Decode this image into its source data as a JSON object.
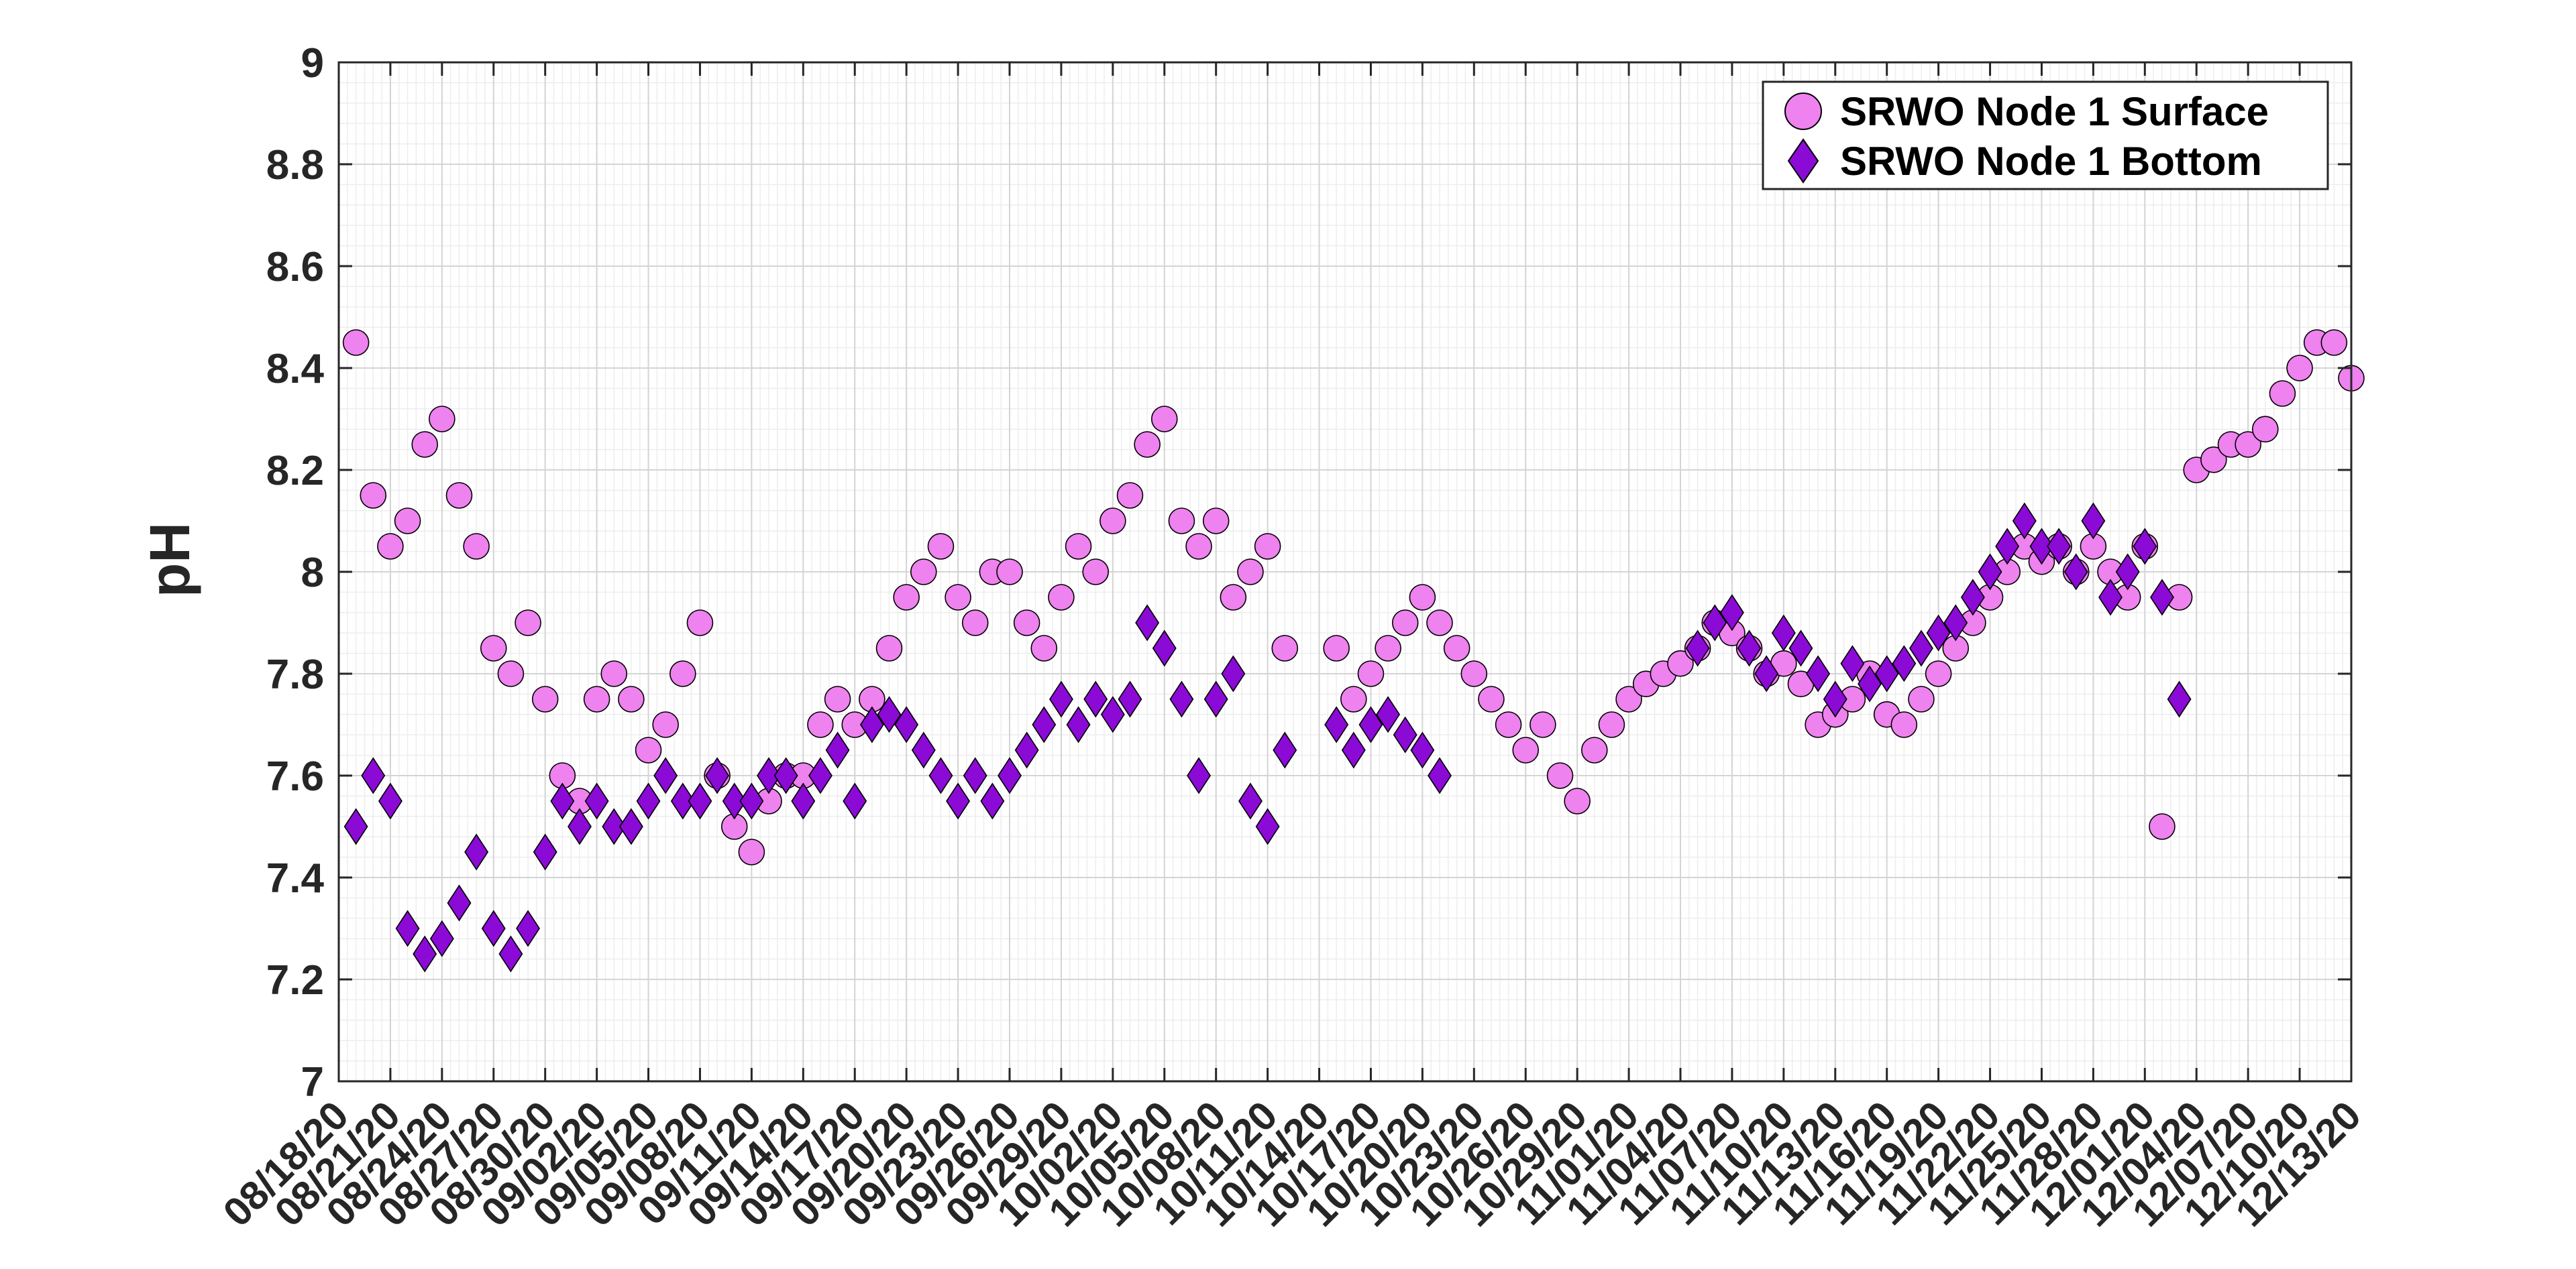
{
  "chart_data": {
    "type": "scatter",
    "title": "",
    "xlabel": "",
    "ylabel": "pH",
    "ylim": [
      7,
      9
    ],
    "yticks": [
      7,
      7.2,
      7.4,
      7.6,
      7.8,
      8,
      8.2,
      8.4,
      8.6,
      8.8,
      9
    ],
    "ytick_labels": [
      "7",
      "7.2",
      "7.4",
      "7.6",
      "7.8",
      "8",
      "8.2",
      "8.4",
      "8.6",
      "8.8",
      "9"
    ],
    "xlim": [
      "2020-08-18",
      "2020-12-13"
    ],
    "xticks": [
      "2020-08-18",
      "2020-08-21",
      "2020-08-24",
      "2020-08-27",
      "2020-08-30",
      "2020-09-02",
      "2020-09-05",
      "2020-09-08",
      "2020-09-11",
      "2020-09-14",
      "2020-09-17",
      "2020-09-20",
      "2020-09-23",
      "2020-09-26",
      "2020-09-29",
      "2020-10-02",
      "2020-10-05",
      "2020-10-08",
      "2020-10-11",
      "2020-10-14",
      "2020-10-17",
      "2020-10-20",
      "2020-10-23",
      "2020-10-26",
      "2020-10-29",
      "2020-11-01",
      "2020-11-04",
      "2020-11-07",
      "2020-11-10",
      "2020-11-13",
      "2020-11-16",
      "2020-11-19",
      "2020-11-22",
      "2020-11-25",
      "2020-11-28",
      "2020-12-01",
      "2020-12-04",
      "2020-12-07",
      "2020-12-10",
      "2020-12-13"
    ],
    "xtick_labels": [
      "08/18/20",
      "08/21/20",
      "08/24/20",
      "08/27/20",
      "08/30/20",
      "09/02/20",
      "09/05/20",
      "09/08/20",
      "09/11/20",
      "09/14/20",
      "09/17/20",
      "09/20/20",
      "09/23/20",
      "09/26/20",
      "09/29/20",
      "10/02/20",
      "10/05/20",
      "10/08/20",
      "10/11/20",
      "10/14/20",
      "10/17/20",
      "10/20/20",
      "10/23/20",
      "10/26/20",
      "10/29/20",
      "11/01/20",
      "11/04/20",
      "11/07/20",
      "11/10/20",
      "11/13/20",
      "11/16/20",
      "11/19/20",
      "11/22/20",
      "11/25/20",
      "11/28/20",
      "12/01/20",
      "12/04/20",
      "12/07/20",
      "12/10/20",
      "12/13/20"
    ],
    "grid": true,
    "minor_grid": true,
    "legend_position": "top-right",
    "series": [
      {
        "name": "SRWO Node 1 Surface",
        "marker": "circle",
        "color": "#EE82EE",
        "edge_color": "#000000",
        "x": [
          "2020-08-19",
          "2020-08-20",
          "2020-08-21",
          "2020-08-22",
          "2020-08-23",
          "2020-08-24",
          "2020-08-25",
          "2020-08-26",
          "2020-08-27",
          "2020-08-28",
          "2020-08-29",
          "2020-08-30",
          "2020-08-31",
          "2020-09-01",
          "2020-09-02",
          "2020-09-03",
          "2020-09-04",
          "2020-09-05",
          "2020-09-06",
          "2020-09-07",
          "2020-09-08",
          "2020-09-09",
          "2020-09-10",
          "2020-09-11",
          "2020-09-12",
          "2020-09-13",
          "2020-09-14",
          "2020-09-15",
          "2020-09-16",
          "2020-09-17",
          "2020-09-18",
          "2020-09-19",
          "2020-09-20",
          "2020-09-21",
          "2020-09-22",
          "2020-09-23",
          "2020-09-24",
          "2020-09-25",
          "2020-09-26",
          "2020-09-27",
          "2020-09-28",
          "2020-09-29",
          "2020-09-30",
          "2020-10-01",
          "2020-10-02",
          "2020-10-03",
          "2020-10-04",
          "2020-10-05",
          "2020-10-06",
          "2020-10-07",
          "2020-10-08",
          "2020-10-09",
          "2020-10-10",
          "2020-10-11",
          "2020-10-12",
          "2020-10-15",
          "2020-10-16",
          "2020-10-17",
          "2020-10-18",
          "2020-10-19",
          "2020-10-20",
          "2020-10-21",
          "2020-10-22",
          "2020-10-23",
          "2020-10-24",
          "2020-10-25",
          "2020-10-26",
          "2020-10-27",
          "2020-10-28",
          "2020-10-29",
          "2020-10-30",
          "2020-10-31",
          "2020-11-01",
          "2020-11-02",
          "2020-11-03",
          "2020-11-04",
          "2020-11-05",
          "2020-11-06",
          "2020-11-07",
          "2020-11-08",
          "2020-11-09",
          "2020-11-10",
          "2020-11-11",
          "2020-11-12",
          "2020-11-13",
          "2020-11-14",
          "2020-11-15",
          "2020-11-16",
          "2020-11-17",
          "2020-11-18",
          "2020-11-19",
          "2020-11-20",
          "2020-11-21",
          "2020-11-22",
          "2020-11-23",
          "2020-11-24",
          "2020-11-25",
          "2020-11-26",
          "2020-11-27",
          "2020-11-28",
          "2020-11-29",
          "2020-11-30",
          "2020-12-01",
          "2020-12-02",
          "2020-12-03",
          "2020-12-04",
          "2020-12-05",
          "2020-12-06",
          "2020-12-07",
          "2020-12-08",
          "2020-12-09",
          "2020-12-10",
          "2020-12-11",
          "2020-12-12",
          "2020-12-13"
        ],
        "values": [
          8.45,
          8.15,
          8.05,
          8.1,
          8.25,
          8.3,
          8.15,
          8.05,
          7.85,
          7.8,
          7.9,
          7.75,
          7.6,
          7.55,
          7.75,
          7.8,
          7.75,
          7.65,
          7.7,
          7.8,
          7.9,
          7.6,
          7.5,
          7.45,
          7.55,
          7.6,
          7.6,
          7.7,
          7.75,
          7.7,
          7.75,
          7.85,
          7.95,
          8.0,
          8.05,
          7.95,
          7.9,
          8.0,
          8.0,
          7.9,
          7.85,
          7.95,
          8.05,
          8.0,
          8.1,
          8.15,
          8.25,
          8.3,
          8.1,
          8.05,
          8.1,
          7.95,
          8.0,
          8.05,
          7.85,
          7.85,
          7.75,
          7.8,
          7.85,
          7.9,
          7.95,
          7.9,
          7.85,
          7.8,
          7.75,
          7.7,
          7.65,
          7.7,
          7.6,
          7.55,
          7.65,
          7.7,
          7.75,
          7.78,
          7.8,
          7.82,
          7.85,
          7.9,
          7.88,
          7.85,
          7.8,
          7.82,
          7.78,
          7.7,
          7.72,
          7.75,
          7.8,
          7.72,
          7.7,
          7.75,
          7.8,
          7.85,
          7.9,
          7.95,
          8.0,
          8.05,
          8.02,
          8.05,
          8.0,
          8.05,
          8.0,
          7.95,
          8.05,
          7.5,
          7.95,
          8.2,
          8.22,
          8.25,
          8.25,
          8.28,
          8.35,
          8.4,
          8.45,
          8.45,
          8.38
        ]
      },
      {
        "name": "SRWO Node 1 Bottom",
        "marker": "diamond",
        "color": "#8B0AD6",
        "edge_color": "#000000",
        "x": [
          "2020-08-19",
          "2020-08-20",
          "2020-08-21",
          "2020-08-22",
          "2020-08-23",
          "2020-08-24",
          "2020-08-25",
          "2020-08-26",
          "2020-08-27",
          "2020-08-28",
          "2020-08-29",
          "2020-08-30",
          "2020-08-31",
          "2020-09-01",
          "2020-09-02",
          "2020-09-03",
          "2020-09-04",
          "2020-09-05",
          "2020-09-06",
          "2020-09-07",
          "2020-09-08",
          "2020-09-09",
          "2020-09-10",
          "2020-09-11",
          "2020-09-12",
          "2020-09-13",
          "2020-09-14",
          "2020-09-15",
          "2020-09-16",
          "2020-09-17",
          "2020-09-18",
          "2020-09-19",
          "2020-09-20",
          "2020-09-21",
          "2020-09-22",
          "2020-09-23",
          "2020-09-24",
          "2020-09-25",
          "2020-09-26",
          "2020-09-27",
          "2020-09-28",
          "2020-09-29",
          "2020-09-30",
          "2020-10-01",
          "2020-10-02",
          "2020-10-03",
          "2020-10-04",
          "2020-10-05",
          "2020-10-06",
          "2020-10-07",
          "2020-10-08",
          "2020-10-09",
          "2020-10-10",
          "2020-10-11",
          "2020-10-12",
          "2020-10-15",
          "2020-10-16",
          "2020-10-17",
          "2020-10-18",
          "2020-10-19",
          "2020-10-20",
          "2020-10-21",
          "2020-11-05",
          "2020-11-06",
          "2020-11-07",
          "2020-11-08",
          "2020-11-09",
          "2020-11-10",
          "2020-11-11",
          "2020-11-12",
          "2020-11-13",
          "2020-11-14",
          "2020-11-15",
          "2020-11-16",
          "2020-11-17",
          "2020-11-18",
          "2020-11-19",
          "2020-11-20",
          "2020-11-21",
          "2020-11-22",
          "2020-11-23",
          "2020-11-24",
          "2020-11-25",
          "2020-11-26",
          "2020-11-27",
          "2020-11-28",
          "2020-11-29",
          "2020-11-30",
          "2020-12-01",
          "2020-12-02",
          "2020-12-03"
        ],
        "values": [
          7.5,
          7.6,
          7.55,
          7.3,
          7.25,
          7.28,
          7.35,
          7.45,
          7.3,
          7.25,
          7.3,
          7.45,
          7.55,
          7.5,
          7.55,
          7.5,
          7.5,
          7.55,
          7.6,
          7.55,
          7.55,
          7.6,
          7.55,
          7.55,
          7.6,
          7.6,
          7.55,
          7.6,
          7.65,
          7.55,
          7.7,
          7.72,
          7.7,
          7.65,
          7.6,
          7.55,
          7.6,
          7.55,
          7.6,
          7.65,
          7.7,
          7.75,
          7.7,
          7.75,
          7.72,
          7.75,
          7.9,
          7.85,
          7.75,
          7.6,
          7.75,
          7.8,
          7.55,
          7.5,
          7.65,
          7.7,
          7.65,
          7.7,
          7.72,
          7.68,
          7.65,
          7.6,
          7.85,
          7.9,
          7.92,
          7.85,
          7.8,
          7.88,
          7.85,
          7.8,
          7.75,
          7.82,
          7.78,
          7.8,
          7.82,
          7.85,
          7.88,
          7.9,
          7.95,
          8.0,
          8.05,
          8.1,
          8.05,
          8.05,
          8.0,
          8.1,
          7.95,
          8.0,
          8.05,
          7.95,
          7.75
        ]
      }
    ]
  }
}
